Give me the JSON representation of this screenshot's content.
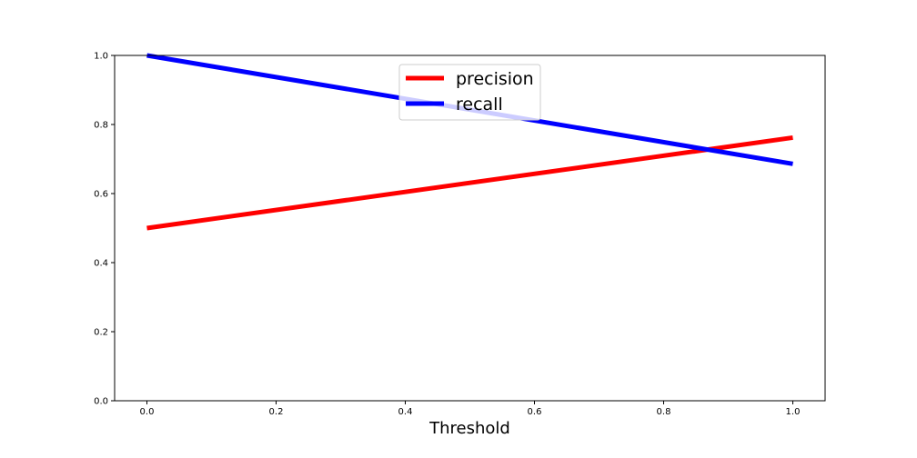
{
  "chart_data": {
    "type": "line",
    "title": "",
    "xlabel": "Threshold",
    "ylabel": "",
    "xlim": [
      -0.05,
      1.05
    ],
    "ylim": [
      0.0,
      1.0
    ],
    "xticks": [
      "0.0",
      "0.2",
      "0.4",
      "0.6",
      "0.8",
      "1.0"
    ],
    "yticks": [
      "0.0",
      "0.2",
      "0.4",
      "0.6",
      "0.8",
      "1.0"
    ],
    "grid": false,
    "legend_position": "upper-center",
    "series": [
      {
        "name": "precision",
        "color": "#ff0000",
        "x": [
          0.0,
          1.0
        ],
        "y": [
          0.5,
          0.762
        ]
      },
      {
        "name": "recall",
        "color": "#0000ff",
        "x": [
          0.0,
          1.0
        ],
        "y": [
          1.0,
          0.686
        ]
      }
    ]
  }
}
